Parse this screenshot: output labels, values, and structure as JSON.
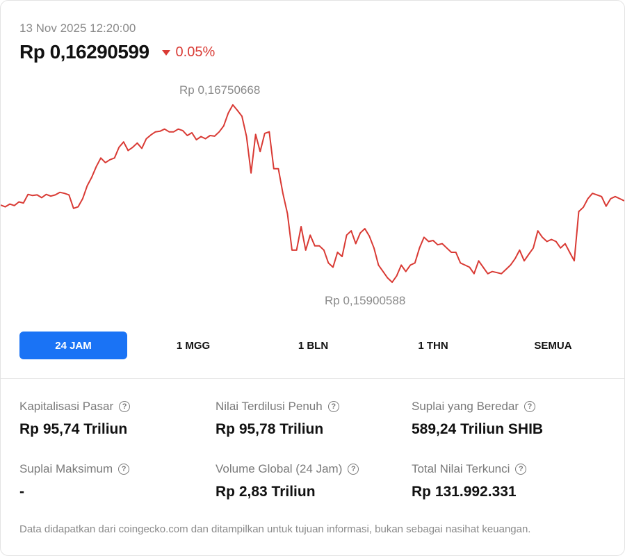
{
  "header": {
    "timestamp": "13 Nov 2025 12:20:00",
    "price": "Rp 0,16290599",
    "change": "0.05%",
    "change_direction": "down",
    "change_color": "#d93a34"
  },
  "chart_data": {
    "type": "line",
    "high_label": "Rp 0,16750668",
    "low_label": "Rp 0,15900588",
    "high": 0.16750668,
    "low": 0.15900588,
    "line_color": "#d93a34",
    "grid": false,
    "values": [
      0.1627,
      0.16262,
      0.16275,
      0.16268,
      0.16285,
      0.1628,
      0.1632,
      0.16315,
      0.16318,
      0.16305,
      0.1632,
      0.16312,
      0.16318,
      0.1633,
      0.16325,
      0.16318,
      0.16255,
      0.16262,
      0.163,
      0.1636,
      0.164,
      0.1645,
      0.1649,
      0.16468,
      0.16482,
      0.1649,
      0.1654,
      0.16565,
      0.16525,
      0.1654,
      0.1656,
      0.16535,
      0.1658,
      0.16598,
      0.16612,
      0.16615,
      0.16625,
      0.16612,
      0.16612,
      0.16625,
      0.16618,
      0.16595,
      0.16608,
      0.16575,
      0.1659,
      0.1658,
      0.16595,
      0.16592,
      0.16612,
      0.1664,
      0.167,
      0.16738,
      0.16712,
      0.16685,
      0.1659,
      0.1642,
      0.166,
      0.1652,
      0.16605,
      0.16612,
      0.1644,
      0.1644,
      0.16325,
      0.1623,
      0.1606,
      0.1606,
      0.1617,
      0.1606,
      0.1613,
      0.1608,
      0.1608,
      0.1606,
      0.16,
      0.1598,
      0.1605,
      0.1603,
      0.1613,
      0.1615,
      0.1609,
      0.1614,
      0.1616,
      0.16125,
      0.1607,
      0.1599,
      0.1596,
      0.1593,
      0.1591,
      0.1594,
      0.1599,
      0.1596,
      0.1599,
      0.16,
      0.1607,
      0.1612,
      0.161,
      0.16105,
      0.16085,
      0.1609,
      0.1607,
      0.1605,
      0.1605,
      0.16,
      0.1599,
      0.1598,
      0.1595,
      0.1601,
      0.1598,
      0.1595,
      0.1596,
      0.15955,
      0.1595,
      0.1597,
      0.1599,
      0.1602,
      0.1606,
      0.1601,
      0.1604,
      0.1607,
      0.1615,
      0.1612,
      0.161,
      0.1611,
      0.161,
      0.1607,
      0.1609,
      0.1605,
      0.1601,
      0.1624,
      0.1626,
      0.163,
      0.16325,
      0.16318,
      0.1631,
      0.16265,
      0.163,
      0.1631,
      0.163,
      0.1629
    ]
  },
  "periods": [
    {
      "label": "24 JAM",
      "active": true
    },
    {
      "label": "1 MGG",
      "active": false
    },
    {
      "label": "1 BLN",
      "active": false
    },
    {
      "label": "1 THN",
      "active": false
    },
    {
      "label": "SEMUA",
      "active": false
    }
  ],
  "active_color": "#1a73f5",
  "stats": [
    {
      "label": "Kapitalisasi Pasar",
      "value": "Rp 95,74 Triliun"
    },
    {
      "label": "Nilai Terdilusi Penuh",
      "value": "Rp 95,78 Triliun"
    },
    {
      "label": "Suplai yang Beredar",
      "value": "589,24 Triliun SHIB"
    },
    {
      "label": "Suplai Maksimum",
      "value": "-"
    },
    {
      "label": "Volume Global (24 Jam)",
      "value": "Rp 2,83 Triliun"
    },
    {
      "label": "Total Nilai Terkunci",
      "value": "Rp 131.992.331"
    }
  ],
  "help_icon": "question-circle-icon",
  "footer": "Data didapatkan dari coingecko.com dan ditampilkan untuk tujuan informasi, bukan sebagai nasihat keuangan."
}
